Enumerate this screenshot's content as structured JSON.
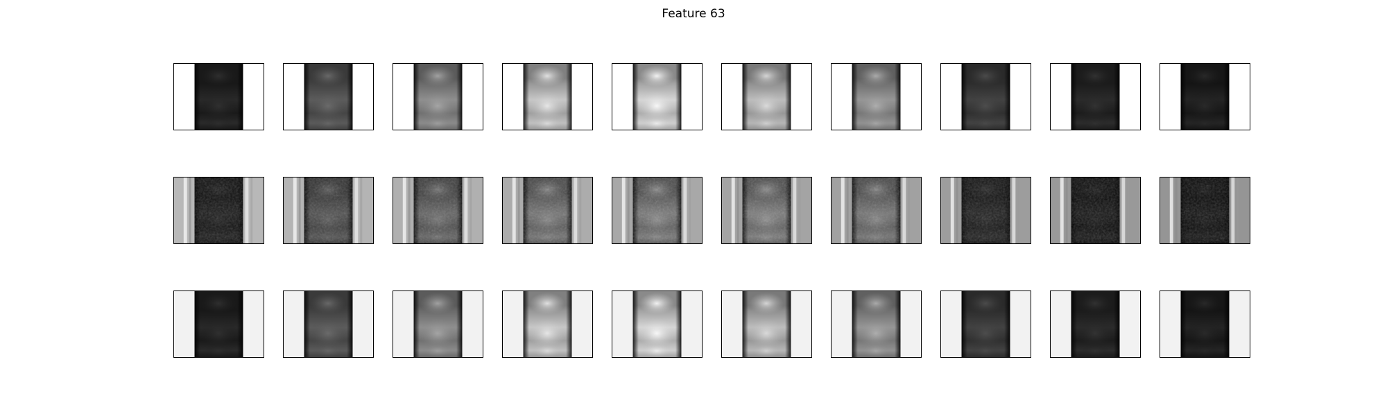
{
  "figure": {
    "title": "Feature 63"
  },
  "panels": {
    "rows": [
      {
        "name": "row-1",
        "side_shade": "#ffffff",
        "style": "smooth",
        "levels": [
          0.12,
          0.32,
          0.52,
          0.74,
          0.8,
          0.7,
          0.55,
          0.22,
          0.13,
          0.1
        ]
      },
      {
        "name": "row-2",
        "side_shade": "#b9b9b9",
        "style": "noisy",
        "levels": [
          0.08,
          0.28,
          0.36,
          0.42,
          0.44,
          0.45,
          0.42,
          0.1,
          0.06,
          0.05
        ]
      },
      {
        "name": "row-3",
        "side_shade": "#f2f2f2",
        "style": "smooth",
        "levels": [
          0.12,
          0.32,
          0.52,
          0.74,
          0.8,
          0.7,
          0.55,
          0.22,
          0.13,
          0.1
        ]
      }
    ]
  }
}
